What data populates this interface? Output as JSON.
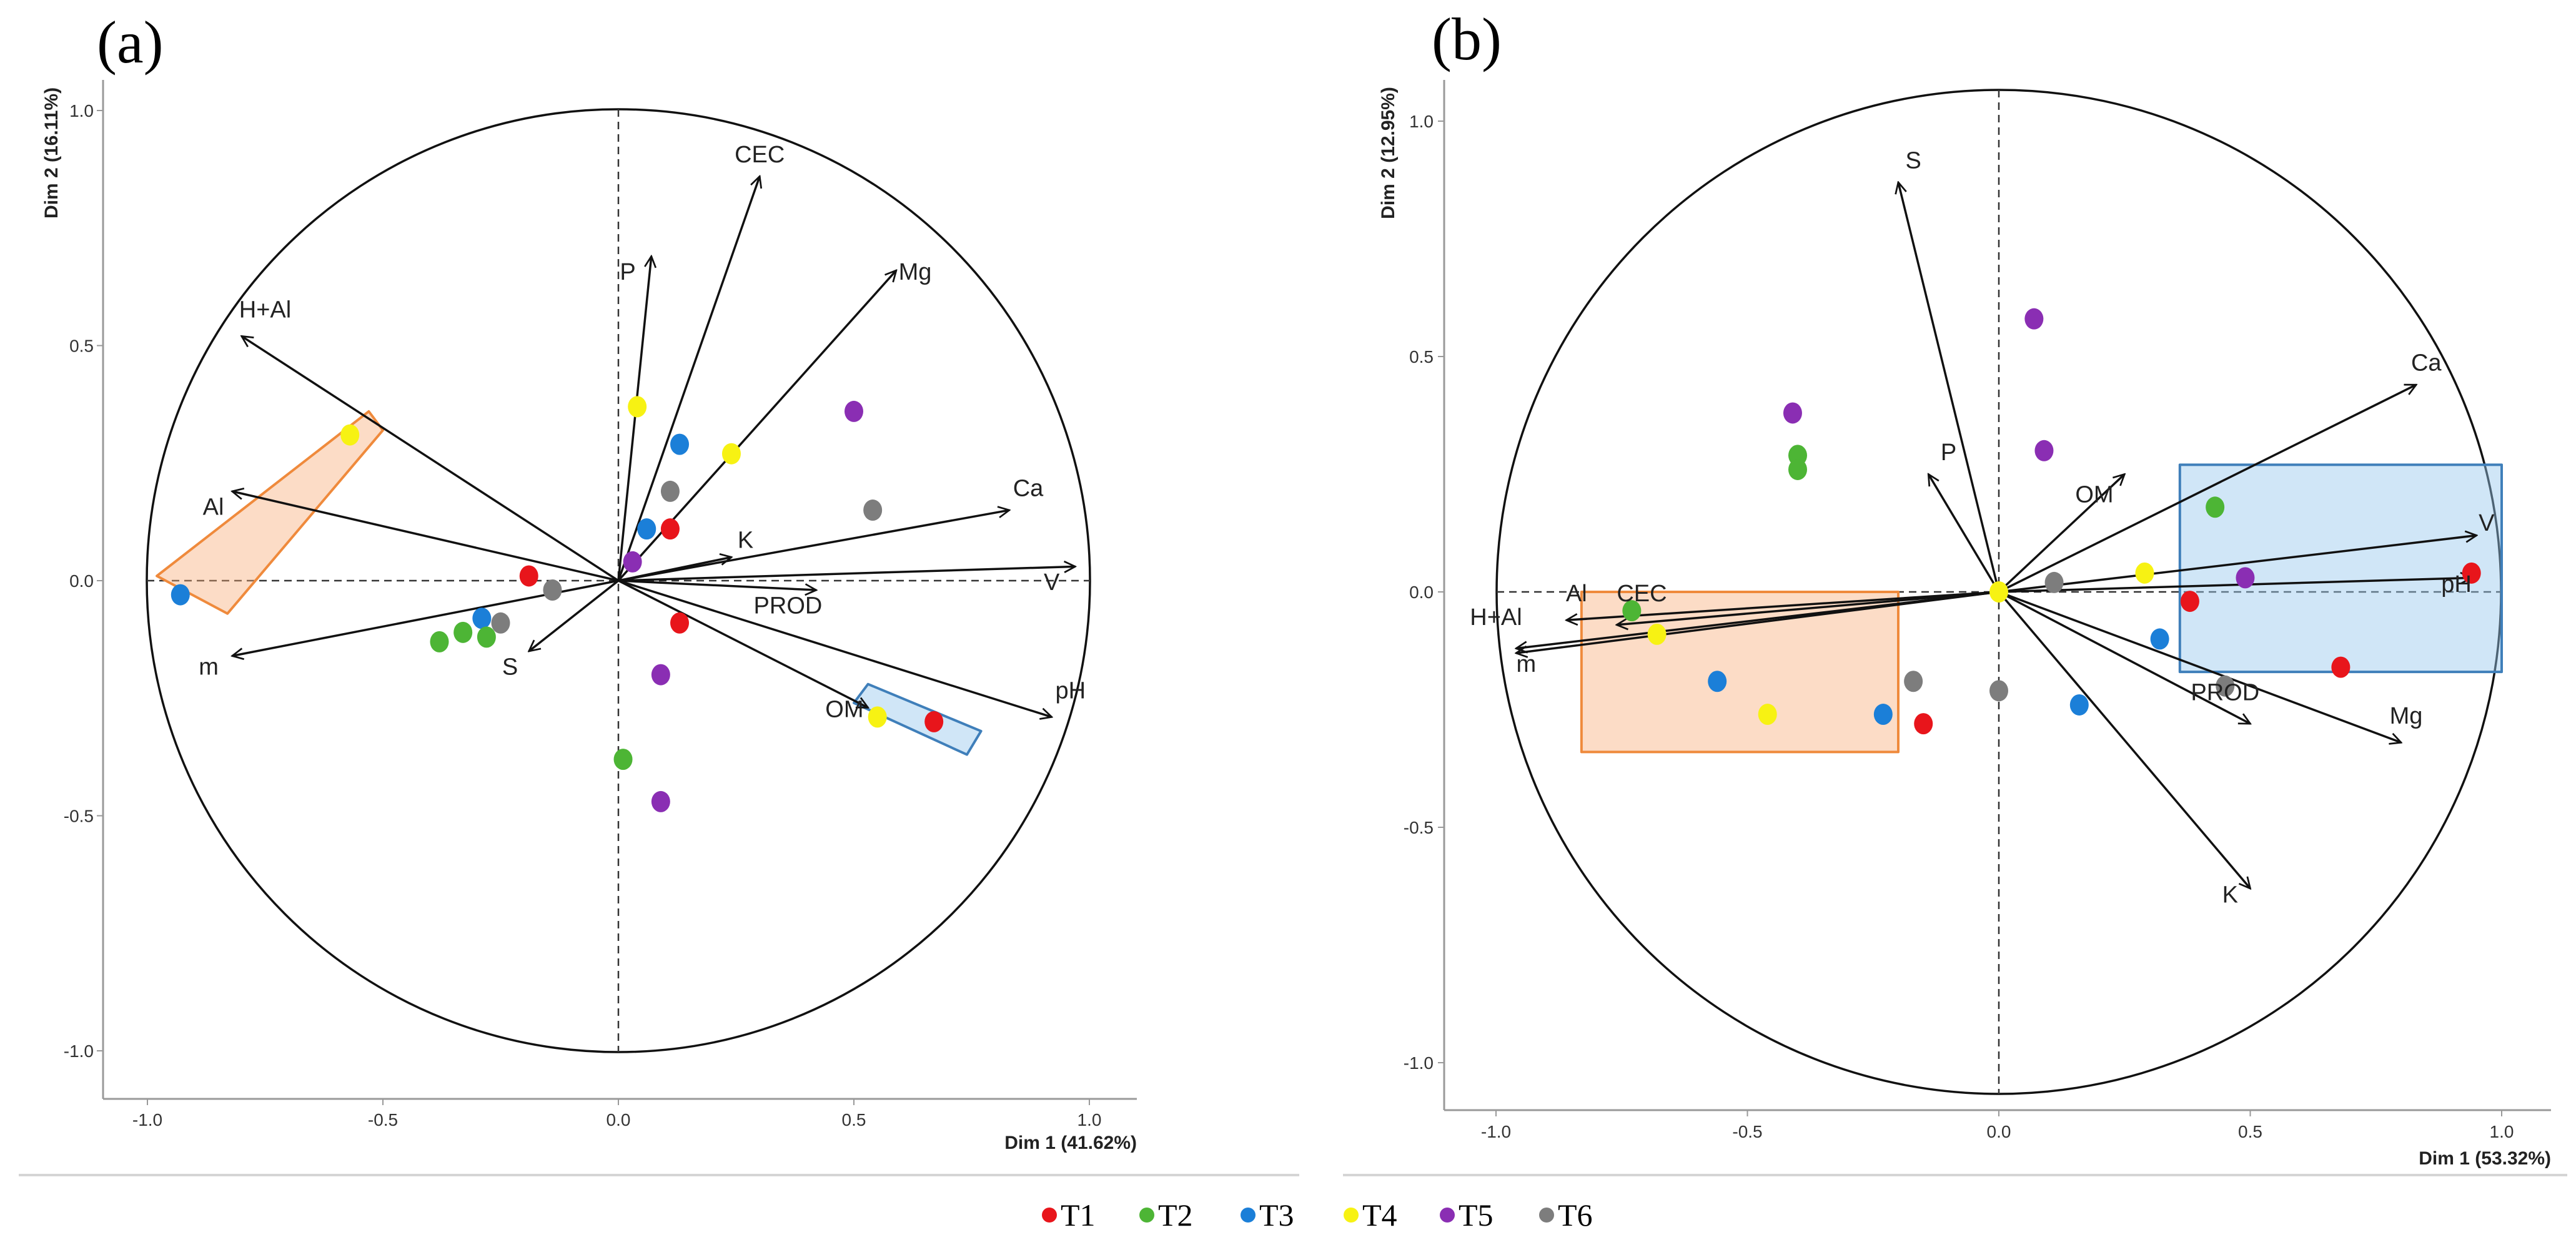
{
  "colors": {
    "T1": "#e8151b",
    "T2": "#4db535",
    "T3": "#1b7fd8",
    "T4": "#f7f213",
    "T5": "#8a2eb3",
    "T6": "#7d7d7d"
  },
  "legend": [
    "T1",
    "T2",
    "T3",
    "T4",
    "T5",
    "T6"
  ],
  "chart_data": [
    {
      "type": "scatter",
      "panel_label": "(a)",
      "xlabel": "Dim 1 (41.62%)",
      "ylabel": "Dim 2 (16.11%)",
      "xlim": [
        -1.0,
        1.0
      ],
      "ylim": [
        -1.0,
        1.0
      ],
      "x_ticks": [
        "-1.0",
        "-0.5",
        "0.0",
        "0.5",
        "1.0"
      ],
      "y_ticks": [
        "1.0",
        "0.5",
        "0.0",
        "-0.5",
        "-1.0"
      ],
      "tick_values": [
        -1.0,
        -0.5,
        0.0,
        0.5,
        1.0
      ],
      "vectors": [
        {
          "name": "CEC",
          "x": 0.3,
          "y": 0.86,
          "lx": 0.3,
          "ly": 0.89
        },
        {
          "name": "P",
          "x": 0.07,
          "y": 0.69,
          "lx": 0.02,
          "ly": 0.64
        },
        {
          "name": "Mg",
          "x": 0.59,
          "y": 0.66,
          "lx": 0.63,
          "ly": 0.64
        },
        {
          "name": "H+Al",
          "x": -0.8,
          "y": 0.52,
          "lx": -0.75,
          "ly": 0.56
        },
        {
          "name": "Ca",
          "x": 0.83,
          "y": 0.15,
          "lx": 0.87,
          "ly": 0.18
        },
        {
          "name": "Al",
          "x": -0.82,
          "y": 0.19,
          "lx": -0.86,
          "ly": 0.14
        },
        {
          "name": "K",
          "x": 0.24,
          "y": 0.05,
          "lx": 0.27,
          "ly": 0.07
        },
        {
          "name": "V",
          "x": 0.97,
          "y": 0.03,
          "lx": 0.92,
          "ly": -0.02
        },
        {
          "name": "PROD",
          "x": 0.42,
          "y": -0.02,
          "lx": 0.36,
          "ly": -0.07
        },
        {
          "name": "m",
          "x": -0.82,
          "y": -0.16,
          "lx": -0.87,
          "ly": -0.2
        },
        {
          "name": "S",
          "x": -0.19,
          "y": -0.15,
          "lx": -0.23,
          "ly": -0.2
        },
        {
          "name": "OM",
          "x": 0.53,
          "y": -0.27,
          "lx": 0.48,
          "ly": -0.29
        },
        {
          "name": "pH",
          "x": 0.92,
          "y": -0.29,
          "lx": 0.96,
          "ly": -0.25
        }
      ],
      "points": [
        {
          "g": "T4",
          "x": -0.57,
          "y": 0.31
        },
        {
          "g": "T3",
          "x": -0.93,
          "y": -0.03
        },
        {
          "g": "T1",
          "x": -0.19,
          "y": 0.01
        },
        {
          "g": "T6",
          "x": -0.14,
          "y": -0.02
        },
        {
          "g": "T3",
          "x": -0.29,
          "y": -0.08
        },
        {
          "g": "T6",
          "x": -0.25,
          "y": -0.09
        },
        {
          "g": "T2",
          "x": -0.28,
          "y": -0.12
        },
        {
          "g": "T2",
          "x": -0.33,
          "y": -0.11
        },
        {
          "g": "T2",
          "x": -0.38,
          "y": -0.13
        },
        {
          "g": "T4",
          "x": 0.04,
          "y": 0.37
        },
        {
          "g": "T3",
          "x": 0.13,
          "y": 0.29
        },
        {
          "g": "T4",
          "x": 0.24,
          "y": 0.27
        },
        {
          "g": "T6",
          "x": 0.11,
          "y": 0.19
        },
        {
          "g": "T3",
          "x": 0.06,
          "y": 0.11
        },
        {
          "g": "T1",
          "x": 0.11,
          "y": 0.11
        },
        {
          "g": "T5",
          "x": 0.03,
          "y": 0.04
        },
        {
          "g": "T5",
          "x": 0.5,
          "y": 0.36
        },
        {
          "g": "T6",
          "x": 0.54,
          "y": 0.15
        },
        {
          "g": "T1",
          "x": 0.13,
          "y": -0.09
        },
        {
          "g": "T5",
          "x": 0.09,
          "y": -0.2
        },
        {
          "g": "T2",
          "x": 0.01,
          "y": -0.38
        },
        {
          "g": "T5",
          "x": 0.09,
          "y": -0.47
        },
        {
          "g": "T4",
          "x": 0.55,
          "y": -0.29
        },
        {
          "g": "T1",
          "x": 0.67,
          "y": -0.3
        }
      ],
      "boxes": [
        {
          "color": "orange",
          "corners": [
            [
              -0.83,
              -0.07
            ],
            [
              -0.98,
              0.01
            ],
            [
              -0.53,
              0.36
            ],
            [
              -0.5,
              0.32
            ]
          ]
        },
        {
          "color": "blue",
          "corners": [
            [
              0.53,
              -0.22
            ],
            [
              0.5,
              -0.26
            ],
            [
              0.74,
              -0.37
            ],
            [
              0.77,
              -0.32
            ]
          ]
        }
      ]
    },
    {
      "type": "scatter",
      "panel_label": "(b)",
      "xlabel": "Dim 1 (53.32%)",
      "ylabel": "Dim 2 (12.95%)",
      "xlim": [
        -1.0,
        1.0
      ],
      "ylim": [
        -1.0,
        1.0
      ],
      "x_ticks": [
        "-1.0",
        "-0.5",
        "0.0",
        "0.5",
        "1.0"
      ],
      "y_ticks": [
        "1.0",
        "0.5",
        "0.0",
        "-0.5",
        "-1.0"
      ],
      "tick_values": [
        -1.0,
        -0.5,
        0.0,
        0.5,
        1.0
      ],
      "vectors": [
        {
          "name": "S",
          "x": -0.2,
          "y": 0.87,
          "lx": -0.17,
          "ly": 0.9
        },
        {
          "name": "P",
          "x": -0.14,
          "y": 0.25,
          "lx": -0.1,
          "ly": 0.28
        },
        {
          "name": "OM",
          "x": 0.25,
          "y": 0.25,
          "lx": 0.19,
          "ly": 0.19
        },
        {
          "name": "Ca",
          "x": 0.83,
          "y": 0.44,
          "lx": 0.85,
          "ly": 0.47
        },
        {
          "name": "V",
          "x": 0.95,
          "y": 0.12,
          "lx": 0.97,
          "ly": 0.13
        },
        {
          "name": "pH",
          "x": 0.94,
          "y": 0.03,
          "lx": 0.91,
          "ly": 0.0
        },
        {
          "name": "PROD",
          "x": 0.5,
          "y": -0.28,
          "lx": 0.45,
          "ly": -0.23
        },
        {
          "name": "Mg",
          "x": 0.8,
          "y": -0.32,
          "lx": 0.81,
          "ly": -0.28
        },
        {
          "name": "K",
          "x": 0.5,
          "y": -0.63,
          "lx": 0.46,
          "ly": -0.66
        },
        {
          "name": "Al",
          "x": -0.86,
          "y": -0.06,
          "lx": -0.84,
          "ly": -0.02
        },
        {
          "name": "CEC",
          "x": -0.76,
          "y": -0.07,
          "lx": -0.71,
          "ly": -0.02
        },
        {
          "name": "H+Al",
          "x": -0.96,
          "y": -0.12,
          "lx": -1.0,
          "ly": -0.07
        },
        {
          "name": "m",
          "x": -0.96,
          "y": -0.13,
          "lx": -0.94,
          "ly": -0.17
        }
      ],
      "points": [
        {
          "g": "T5",
          "x": 0.07,
          "y": 0.58
        },
        {
          "g": "T5",
          "x": -0.41,
          "y": 0.38
        },
        {
          "g": "T5",
          "x": 0.09,
          "y": 0.3
        },
        {
          "g": "T2",
          "x": -0.4,
          "y": 0.29
        },
        {
          "g": "T2",
          "x": -0.4,
          "y": 0.26
        },
        {
          "g": "T4",
          "x": 0.0,
          "y": 0.0
        },
        {
          "g": "T6",
          "x": 0.11,
          "y": 0.02
        },
        {
          "g": "T4",
          "x": 0.29,
          "y": 0.04
        },
        {
          "g": "T2",
          "x": 0.43,
          "y": 0.18
        },
        {
          "g": "T5",
          "x": 0.49,
          "y": 0.03
        },
        {
          "g": "T1",
          "x": 0.94,
          "y": 0.04
        },
        {
          "g": "T1",
          "x": 0.38,
          "y": -0.02
        },
        {
          "g": "T3",
          "x": 0.32,
          "y": -0.1
        },
        {
          "g": "T6",
          "x": 0.45,
          "y": -0.2
        },
        {
          "g": "T1",
          "x": 0.68,
          "y": -0.16
        },
        {
          "g": "T3",
          "x": 0.16,
          "y": -0.24
        },
        {
          "g": "T6",
          "x": 0.0,
          "y": -0.21
        },
        {
          "g": "T2",
          "x": -0.73,
          "y": -0.04
        },
        {
          "g": "T4",
          "x": -0.68,
          "y": -0.09
        },
        {
          "g": "T3",
          "x": -0.56,
          "y": -0.19
        },
        {
          "g": "T4",
          "x": -0.46,
          "y": -0.26
        },
        {
          "g": "T3",
          "x": -0.23,
          "y": -0.26
        },
        {
          "g": "T6",
          "x": -0.17,
          "y": -0.19
        },
        {
          "g": "T1",
          "x": -0.15,
          "y": -0.28
        }
      ],
      "boxes": [
        {
          "color": "orange",
          "corners": [
            [
              -0.83,
              -0.34
            ],
            [
              -0.83,
              0.0
            ],
            [
              -0.2,
              0.0
            ],
            [
              -0.2,
              -0.34
            ]
          ]
        },
        {
          "color": "blue",
          "corners": [
            [
              0.36,
              -0.17
            ],
            [
              0.36,
              0.27
            ],
            [
              1.0,
              0.27
            ],
            [
              1.0,
              -0.17
            ]
          ]
        }
      ]
    }
  ]
}
